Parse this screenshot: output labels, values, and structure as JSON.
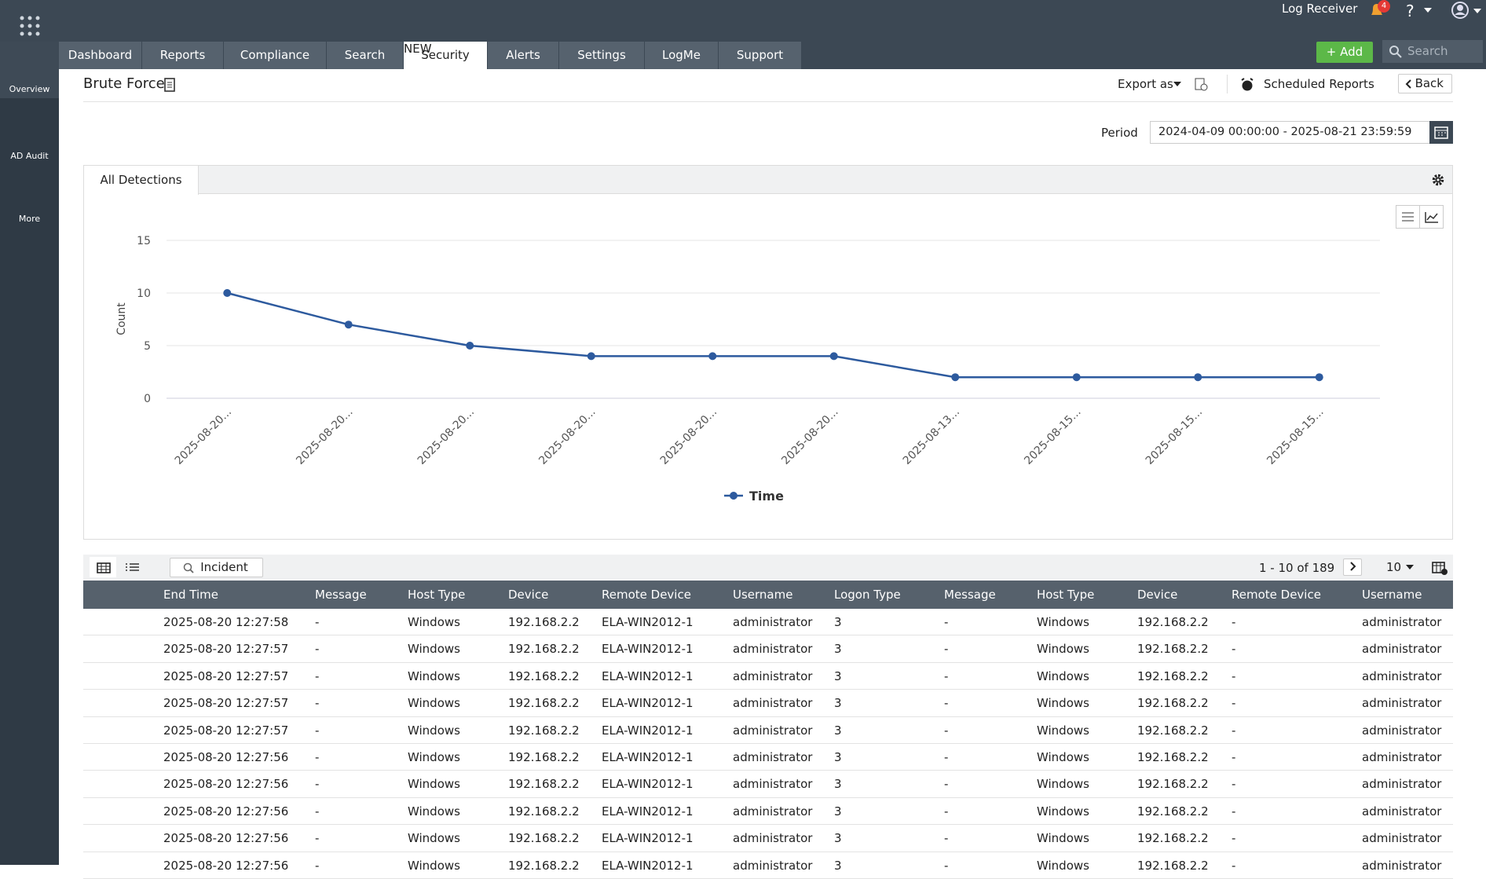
{
  "header": {
    "user": "Log Receiver",
    "notification_count": 4,
    "help": "?"
  },
  "nav": {
    "tabs": [
      "Dashboard",
      "Reports",
      "Compliance",
      "Search",
      "Security",
      "Alerts",
      "Settings",
      "LogMe",
      "Support"
    ],
    "active_tab": "Security",
    "new_badge": "NEW",
    "add_button": "Add",
    "search_placeholder": "Search"
  },
  "sidebar": {
    "items": [
      "Overview",
      "AD Audit",
      "More"
    ]
  },
  "report": {
    "title": "Brute Force",
    "export": "Export as",
    "scheduled": "Scheduled Reports",
    "back": "Back",
    "period_label": "Period",
    "period_value": "2024-04-09 00:00:00 - 2025-08-21 23:59:59",
    "chart_tab": "All Detections"
  },
  "chart_data": {
    "type": "line",
    "y_label": "Count",
    "categories": [
      "2025-08-20...",
      "2025-08-20...",
      "2025-08-20...",
      "2025-08-20...",
      "2025-08-20...",
      "2025-08-20...",
      "2025-08-13...",
      "2025-08-15...",
      "2025-08-15...",
      "2025-08-15..."
    ],
    "series": [
      {
        "name": "Time",
        "color": "#2d5a9e",
        "values": [
          10,
          7,
          5,
          4,
          4,
          4,
          2,
          2,
          2,
          2
        ]
      }
    ],
    "ylim": [
      0,
      15
    ],
    "yticks": [
      0,
      5,
      10,
      15
    ],
    "grid": true,
    "legend": "bottom"
  },
  "table": {
    "incident_button": "Incident",
    "pagination": "1 - 10 of 189",
    "page_size": 10,
    "columns": [
      "End Time",
      "Message",
      "Host Type",
      "Device",
      "Remote Device",
      "Username",
      "Logon Type",
      "Message",
      "Host Type",
      "Device",
      "Remote Device",
      "Username"
    ],
    "rows": [
      [
        "2025-08-20 12:27:58",
        "-",
        "Windows",
        "192.168.2.2",
        "ELA-WIN2012-1",
        "administrator",
        "3",
        "-",
        "Windows",
        "192.168.2.2",
        "-",
        "administrator"
      ],
      [
        "2025-08-20 12:27:57",
        "-",
        "Windows",
        "192.168.2.2",
        "ELA-WIN2012-1",
        "administrator",
        "3",
        "-",
        "Windows",
        "192.168.2.2",
        "-",
        "administrator"
      ],
      [
        "2025-08-20 12:27:57",
        "-",
        "Windows",
        "192.168.2.2",
        "ELA-WIN2012-1",
        "administrator",
        "3",
        "-",
        "Windows",
        "192.168.2.2",
        "-",
        "administrator"
      ],
      [
        "2025-08-20 12:27:57",
        "-",
        "Windows",
        "192.168.2.2",
        "ELA-WIN2012-1",
        "administrator",
        "3",
        "-",
        "Windows",
        "192.168.2.2",
        "-",
        "administrator"
      ],
      [
        "2025-08-20 12:27:57",
        "-",
        "Windows",
        "192.168.2.2",
        "ELA-WIN2012-1",
        "administrator",
        "3",
        "-",
        "Windows",
        "192.168.2.2",
        "-",
        "administrator"
      ],
      [
        "2025-08-20 12:27:56",
        "-",
        "Windows",
        "192.168.2.2",
        "ELA-WIN2012-1",
        "administrator",
        "3",
        "-",
        "Windows",
        "192.168.2.2",
        "-",
        "administrator"
      ],
      [
        "2025-08-20 12:27:56",
        "-",
        "Windows",
        "192.168.2.2",
        "ELA-WIN2012-1",
        "administrator",
        "3",
        "-",
        "Windows",
        "192.168.2.2",
        "-",
        "administrator"
      ],
      [
        "2025-08-20 12:27:56",
        "-",
        "Windows",
        "192.168.2.2",
        "ELA-WIN2012-1",
        "administrator",
        "3",
        "-",
        "Windows",
        "192.168.2.2",
        "-",
        "administrator"
      ],
      [
        "2025-08-20 12:27:56",
        "-",
        "Windows",
        "192.168.2.2",
        "ELA-WIN2012-1",
        "administrator",
        "3",
        "-",
        "Windows",
        "192.168.2.2",
        "-",
        "administrator"
      ],
      [
        "2025-08-20 12:27:56",
        "-",
        "Windows",
        "192.168.2.2",
        "ELA-WIN2012-1",
        "administrator",
        "3",
        "-",
        "Windows",
        "192.168.2.2",
        "-",
        "administrator"
      ]
    ]
  }
}
